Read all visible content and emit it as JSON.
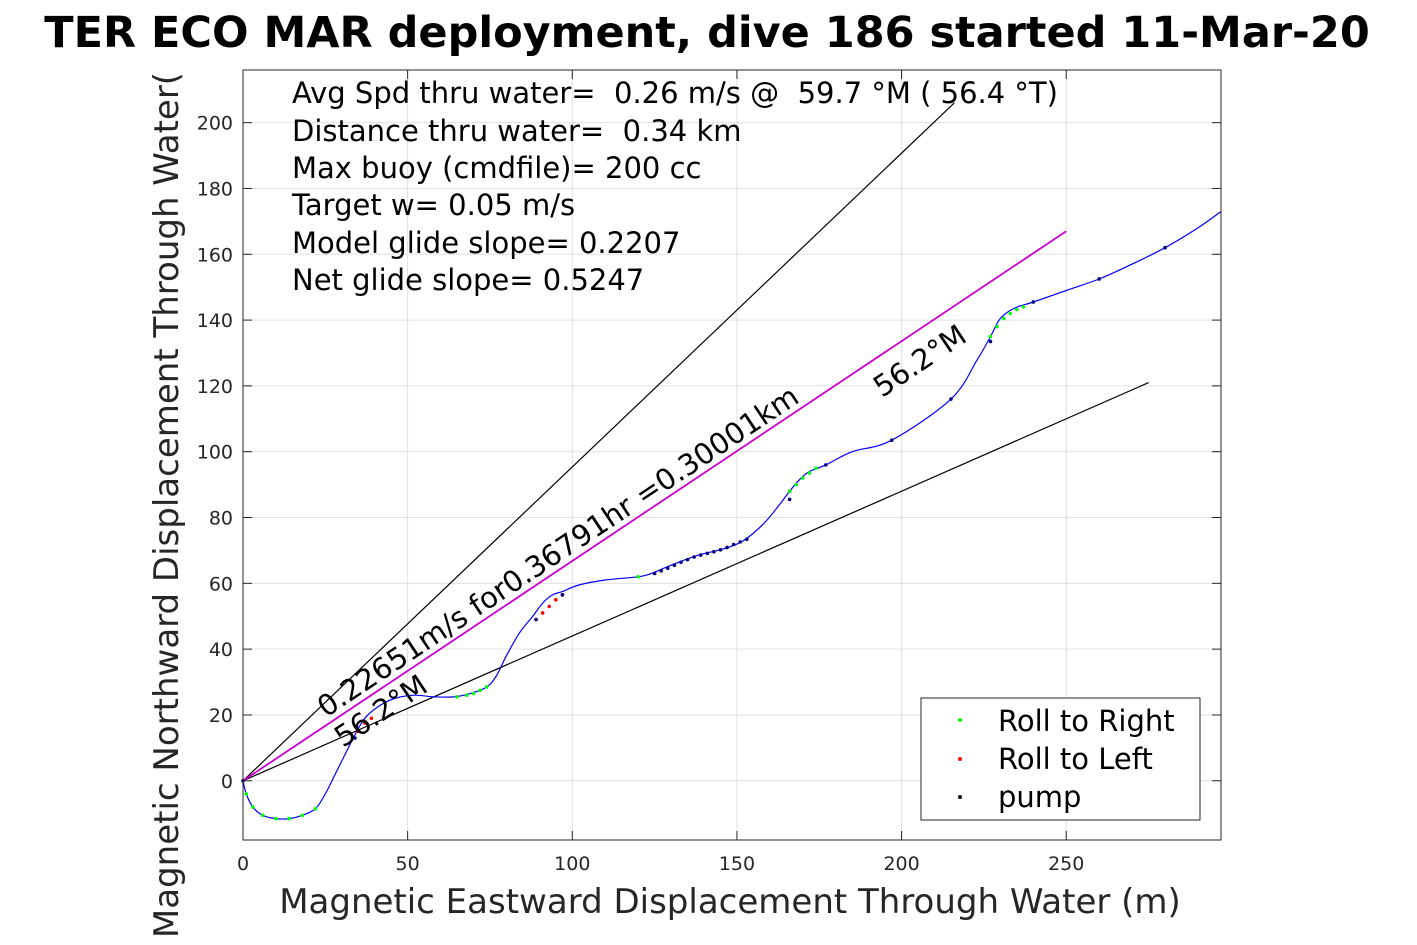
{
  "chart_data": {
    "type": "line",
    "title": "TER ECO MAR deployment, dive 186 started 11-Mar-20",
    "xlabel": "Magnetic Eastward Displacement Through Water (m)",
    "ylabel": "Magnetic Northward Displacement Through Water(",
    "xlim": [
      0,
      297
    ],
    "ylim": [
      -18,
      216
    ],
    "xticks": [
      0,
      50,
      100,
      150,
      200,
      250
    ],
    "yticks": [
      0,
      20,
      40,
      60,
      80,
      100,
      120,
      140,
      160,
      180,
      200
    ],
    "grid": true,
    "stats": [
      "Avg Spd thru water=  0.26 m/s @  59.7 °M ( 56.4 °T)",
      "Distance thru water=  0.34 km",
      "Max buoy (cmdfile)= 200 cc",
      "Target w= 0.05 m/s",
      "Model glide slope= 0.2207",
      "Net glide slope= 0.5247"
    ],
    "annotations": {
      "along_track": "0.22651m/s for0.36791hr =0.30001km",
      "heading_start": "56.2°M",
      "heading_end": "56.2°M"
    },
    "lines": {
      "upper_bound": {
        "x": [
          0,
          216
        ],
        "y": [
          0,
          206
        ]
      },
      "lower_bound": {
        "x": [
          0,
          275
        ],
        "y": [
          0,
          121
        ]
      },
      "course": {
        "x": [
          0,
          250
        ],
        "y": [
          0,
          167
        ]
      }
    },
    "track": {
      "x": [
        0,
        1,
        3,
        6,
        10,
        14,
        18,
        22,
        25,
        28,
        31,
        34,
        37,
        41,
        46,
        52,
        58,
        64,
        69,
        74,
        77,
        80,
        84,
        88,
        91,
        94,
        97,
        102,
        110,
        120,
        124,
        130,
        138,
        146,
        152,
        158,
        163,
        166,
        169,
        172,
        177,
        185,
        197,
        215,
        223,
        227,
        230,
        234,
        240,
        250,
        260,
        270,
        280,
        290,
        297
      ],
      "y": [
        0,
        -4,
        -8,
        -10.5,
        -11.5,
        -11.5,
        -10.5,
        -8.5,
        -4,
        2,
        8,
        14,
        19,
        22.5,
        25,
        26,
        25.5,
        25.5,
        26.5,
        28.5,
        32,
        38,
        45,
        50,
        54,
        56.5,
        57.5,
        59.5,
        61,
        62,
        63,
        65.5,
        68.5,
        70.5,
        73,
        78,
        84,
        88,
        91.5,
        94,
        96,
        100,
        103.5,
        116,
        128,
        135,
        140.5,
        143.5,
        145.5,
        149,
        152.5,
        157,
        162,
        168,
        173
      ]
    },
    "series": [
      {
        "name": "Roll to Right",
        "color": "#00ff00",
        "x": [
          1,
          3,
          6,
          10,
          14,
          18,
          22,
          65,
          68,
          70,
          72,
          74,
          120,
          166,
          168,
          170,
          172,
          174,
          227,
          229,
          231,
          233,
          235,
          237
        ],
        "y": [
          -4,
          -8,
          -10.5,
          -11.5,
          -11.5,
          -10.5,
          -8.5,
          25.5,
          26,
          26.5,
          27.5,
          28.5,
          62,
          88,
          90,
          92,
          93.5,
          95,
          135,
          138,
          140.5,
          142,
          143.2,
          144
        ],
        "marker": "dot"
      },
      {
        "name": "Roll to Left",
        "color": "#ff0000",
        "x": [
          0,
          35,
          37,
          39,
          89,
          91,
          93,
          95,
          97
        ],
        "y": [
          0,
          15,
          17.5,
          19,
          49,
          51,
          53,
          55,
          56.5
        ],
        "marker": "dot"
      },
      {
        "name": "pump",
        "color": "#000000",
        "x": [
          0,
          34,
          89,
          97,
          125,
          127,
          129,
          131,
          133,
          135,
          137,
          139,
          141,
          143,
          145,
          147,
          149,
          151,
          153,
          166,
          177,
          197,
          215,
          227,
          240,
          260,
          280
        ],
        "y": [
          0,
          13,
          49,
          56.5,
          63,
          63.8,
          64.6,
          65.5,
          66.4,
          67.2,
          68,
          68.6,
          69.1,
          69.6,
          70.2,
          70.9,
          71.8,
          72.6,
          73.4,
          85.5,
          96,
          103.5,
          116,
          133.5,
          145.5,
          152.5,
          162
        ],
        "marker": "dot"
      }
    ],
    "legend": {
      "position": "bottom-right",
      "entries": [
        "Roll to Right",
        "Roll to Left",
        "pump"
      ]
    },
    "colors": {
      "track": "#0000ff",
      "course": "#cc00cc",
      "bounds": "#000000",
      "grid": "#e0e0e0",
      "pump_on_track": "#000080"
    }
  }
}
